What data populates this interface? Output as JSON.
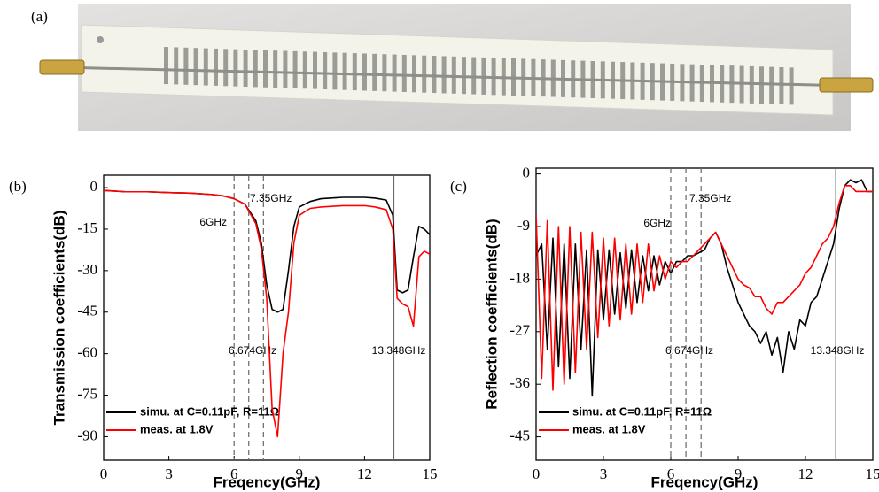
{
  "photo": {
    "label": "(a)"
  },
  "chart_data": [
    {
      "type": "line",
      "panel_label": "(b)",
      "xlabel": "Freqency(GHz)",
      "ylabel": "Transmission coefficients(dB)",
      "xlim": [
        0,
        15
      ],
      "xticks": [
        0,
        3,
        6,
        9,
        12,
        15
      ],
      "ylim": [
        -98.5,
        4.5
      ],
      "yticks": [
        0,
        -15,
        -30,
        -45,
        -60,
        -75,
        -90
      ],
      "legend": "lower left",
      "vlines": [
        {
          "value": 6,
          "label": "6GHz",
          "style": "dashed"
        },
        {
          "value": 7.35,
          "label": "7.35GHz",
          "style": "dashed"
        },
        {
          "value": 6.674,
          "label": "6.674GHz",
          "style": "dashed"
        },
        {
          "value": 13.348,
          "label": "13.348GHz",
          "style": "solid"
        }
      ],
      "x": [
        0,
        1,
        2,
        3,
        4,
        5,
        5.5,
        6,
        6.5,
        7,
        7.25,
        7.5,
        7.75,
        8,
        8.25,
        8.5,
        8.75,
        9,
        9.5,
        10,
        11,
        12,
        12.5,
        13,
        13.3,
        13.5,
        13.75,
        14,
        14.25,
        14.5,
        14.75,
        15
      ],
      "series": [
        {
          "name": "simu. at C=0.11pF, R=11Ω",
          "color": "#000000",
          "values": [
            -1,
            -1.5,
            -1.5,
            -1.8,
            -2,
            -2.5,
            -3,
            -4,
            -6,
            -12,
            -20,
            -35,
            -44,
            -45,
            -44,
            -30,
            -14,
            -7,
            -5,
            -4,
            -3.5,
            -3.5,
            -3.8,
            -4.5,
            -10,
            -37,
            -38,
            -37,
            -25,
            -14,
            -15,
            -17
          ]
        },
        {
          "name": "meas. at 1.8V",
          "color": "#ff0000",
          "values": [
            -1,
            -1.5,
            -1.5,
            -1.8,
            -2,
            -2.5,
            -3,
            -4,
            -6,
            -13,
            -22,
            -40,
            -80,
            -90,
            -60,
            -45,
            -20,
            -10,
            -7.5,
            -7,
            -6.5,
            -6.5,
            -7,
            -8,
            -15,
            -40,
            -42,
            -43,
            -50,
            -25,
            -23,
            -24
          ]
        }
      ]
    },
    {
      "type": "line",
      "panel_label": "(c)",
      "xlabel": "Freqency(GHz)",
      "ylabel": "Reflection coefficients(dB)",
      "xlim": [
        0,
        15
      ],
      "xticks": [
        0,
        3,
        6,
        9,
        12,
        15
      ],
      "ylim": [
        -49,
        1
      ],
      "yticks": [
        0,
        -9,
        -18,
        -27,
        -36,
        -45
      ],
      "legend": "lower left",
      "vlines": [
        {
          "value": 6,
          "label": "6GHz",
          "style": "dashed"
        },
        {
          "value": 7.35,
          "label": "7.35GHz",
          "style": "dashed"
        },
        {
          "value": 6.674,
          "label": "6.674GHz",
          "style": "dashed"
        },
        {
          "value": 13.348,
          "label": "13.348GHz",
          "style": "solid"
        }
      ],
      "x": [
        0,
        0.25,
        0.5,
        0.75,
        1,
        1.25,
        1.5,
        1.75,
        2,
        2.25,
        2.5,
        2.75,
        3,
        3.25,
        3.5,
        3.75,
        4,
        4.25,
        4.5,
        4.75,
        5,
        5.25,
        5.5,
        5.75,
        6,
        6.25,
        6.5,
        6.75,
        7,
        7.25,
        7.5,
        7.75,
        8,
        8.25,
        8.5,
        8.75,
        9,
        9.25,
        9.5,
        9.75,
        10,
        10.25,
        10.5,
        10.75,
        11,
        11.25,
        11.5,
        11.75,
        12,
        12.25,
        12.5,
        12.75,
        13,
        13.25,
        13.5,
        13.75,
        14,
        14.25,
        14.5,
        14.75,
        15
      ],
      "series": [
        {
          "name": "simu. at C=0.11pF, R=11Ω",
          "color": "#000000",
          "values": [
            -14,
            -12,
            -30,
            -11,
            -33,
            -12,
            -35,
            -12,
            -30,
            -13,
            -38,
            -13,
            -25,
            -13,
            -24,
            -13.5,
            -23,
            -13,
            -22,
            -14,
            -20,
            -14,
            -19,
            -15,
            -17,
            -15,
            -15,
            -14,
            -14,
            -13.5,
            -13,
            -11,
            -10,
            -12,
            -16,
            -19,
            -22,
            -24,
            -26,
            -27,
            -29,
            -27,
            -31,
            -28,
            -34,
            -27,
            -30,
            -25,
            -26,
            -22,
            -21,
            -18,
            -15,
            -12,
            -6,
            -2,
            -1,
            -1.5,
            -1,
            -3,
            -3
          ]
        },
        {
          "name": "meas. at 1.8V",
          "color": "#ff0000",
          "values": [
            -7,
            -35,
            -8,
            -37,
            -9,
            -36,
            -9,
            -34,
            -10,
            -30,
            -10,
            -28,
            -11,
            -26,
            -11,
            -25,
            -12,
            -24,
            -12,
            -22,
            -12,
            -20,
            -14,
            -18,
            -15,
            -16,
            -15,
            -15,
            -14,
            -13,
            -12,
            -11,
            -10,
            -12,
            -14,
            -16,
            -18,
            -19,
            -19.5,
            -21,
            -21,
            -23,
            -24,
            -22,
            -22,
            -21,
            -20,
            -19,
            -17,
            -16,
            -14,
            -12,
            -11,
            -9,
            -5,
            -2,
            -2,
            -3,
            -3,
            -3,
            -3
          ]
        }
      ]
    }
  ]
}
